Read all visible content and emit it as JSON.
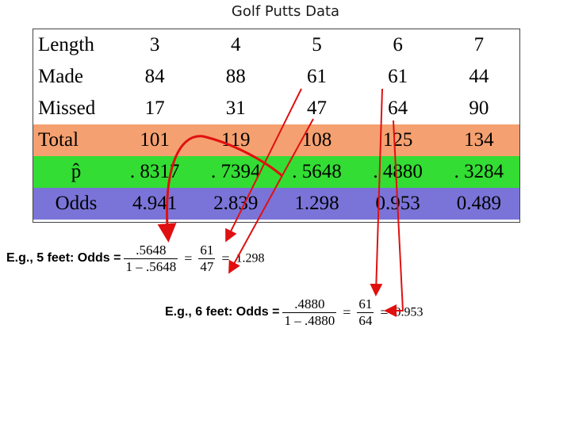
{
  "title": "Golf Putts Data",
  "table": {
    "row_labels": [
      "Length",
      "Made",
      "Missed",
      "Total",
      "p̂",
      "Odds"
    ],
    "columns": [
      {
        "length": "3",
        "made": "84",
        "missed": "17",
        "total": "101",
        "phat": ". 8317",
        "odds": "4.941"
      },
      {
        "length": "4",
        "made": "88",
        "missed": "31",
        "total": "119",
        "phat": ". 7394",
        "odds": "2.839"
      },
      {
        "length": "5",
        "made": "61",
        "missed": "47",
        "total": "108",
        "phat": ". 5648",
        "odds": "1.298"
      },
      {
        "length": "6",
        "made": "61",
        "missed": "64",
        "total": "125",
        "phat": ". 4880",
        "odds": "0.953"
      },
      {
        "length": "7",
        "made": "44",
        "missed": "90",
        "total": "134",
        "phat": ". 3284",
        "odds": "0.489"
      }
    ]
  },
  "example_5": {
    "label": "E.g., 5 feet: Odds =",
    "frac1_num": ".5648",
    "frac1_den": "1 – .5648",
    "frac2_num": "61",
    "frac2_den": "47",
    "result": "1.298"
  },
  "example_6": {
    "label": "E.g., 6 feet: Odds =",
    "frac1_num": ".4880",
    "frac1_den": "1 – .4880",
    "frac2_num": "61",
    "frac2_den": "64",
    "result": "0.953"
  },
  "colors": {
    "total_row": "#f5a070",
    "phat_row": "#33dd33",
    "odds_row": "#7a74d8",
    "arrow": "#e01010"
  }
}
